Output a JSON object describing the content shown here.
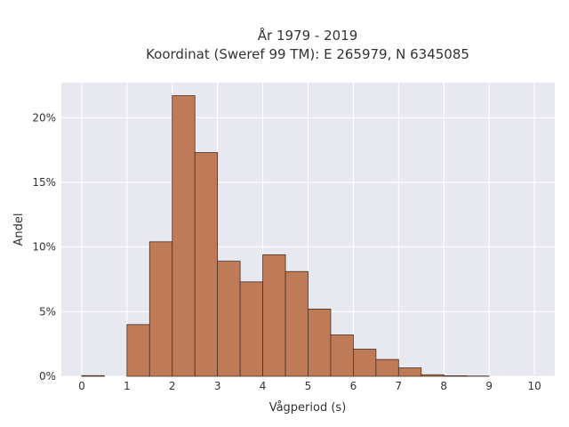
{
  "chart_data": {
    "type": "bar",
    "title": "År 1979 - 2019",
    "subtitle": "Koordinat (Sweref 99 TM): E 265979, N 6345085",
    "xlabel": "Vågperiod (s)",
    "ylabel": "Andel",
    "xlim": [
      -0.45,
      10.45
    ],
    "ylim": [
      0,
      22.7
    ],
    "x_ticks": [
      0,
      1,
      2,
      3,
      4,
      5,
      6,
      7,
      8,
      9,
      10
    ],
    "y_ticks": [
      0,
      5,
      10,
      15,
      20
    ],
    "y_tick_labels": [
      "0%",
      "5%",
      "10%",
      "15%",
      "20%"
    ],
    "bin_width": 0.5,
    "bins": [
      {
        "start": 0.0,
        "value": 0.05
      },
      {
        "start": 0.5,
        "value": 0.0
      },
      {
        "start": 1.0,
        "value": 4.0
      },
      {
        "start": 1.5,
        "value": 10.4
      },
      {
        "start": 2.0,
        "value": 21.7
      },
      {
        "start": 2.5,
        "value": 17.3
      },
      {
        "start": 3.0,
        "value": 8.9
      },
      {
        "start": 3.5,
        "value": 7.3
      },
      {
        "start": 4.0,
        "value": 9.4
      },
      {
        "start": 4.5,
        "value": 8.1
      },
      {
        "start": 5.0,
        "value": 5.2
      },
      {
        "start": 5.5,
        "value": 3.2
      },
      {
        "start": 6.0,
        "value": 2.1
      },
      {
        "start": 6.5,
        "value": 1.3
      },
      {
        "start": 7.0,
        "value": 0.65
      },
      {
        "start": 7.5,
        "value": 0.12
      },
      {
        "start": 8.0,
        "value": 0.04
      },
      {
        "start": 8.5,
        "value": 0.02
      }
    ],
    "grid": true,
    "colors": {
      "bar_fill": "#bf7b57",
      "bar_edge": "#4a2f20",
      "plot_bg": "#e8e8f1",
      "grid": "#ffffff"
    }
  }
}
